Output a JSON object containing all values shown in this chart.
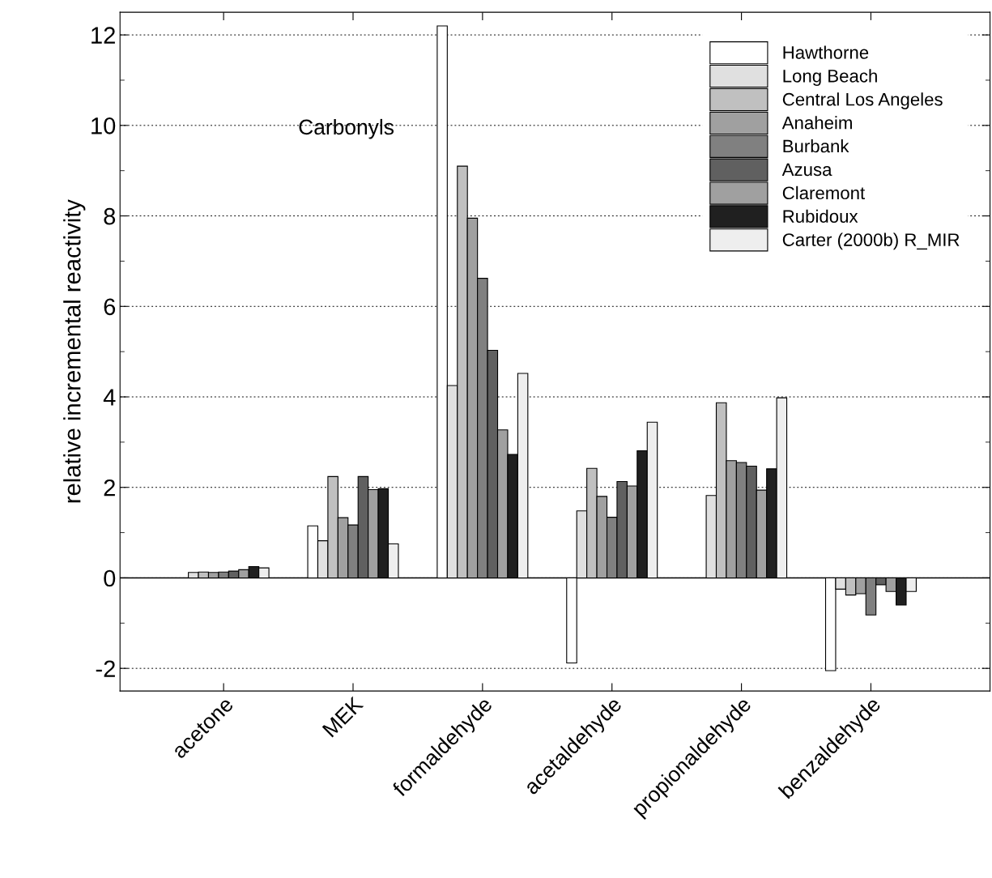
{
  "chart_data": {
    "type": "bar",
    "ylabel": "relative incremental reactivity",
    "annotations": [
      "Carbonyls"
    ],
    "categories": [
      "acetone",
      "MEK",
      "formaldehyde",
      "acetaldehyde",
      "propionaldehyde",
      "benzaldehyde"
    ],
    "series": [
      {
        "name": "Hawthorne",
        "color": "#ffffff",
        "values": [
          null,
          1.15,
          12.2,
          -1.88,
          null,
          -2.05
        ]
      },
      {
        "name": "Long Beach",
        "color": "#e0e0e0",
        "values": [
          0.12,
          0.82,
          4.25,
          1.48,
          1.82,
          -0.25
        ]
      },
      {
        "name": "Central Los Angeles",
        "color": "#c0c0c0",
        "values": [
          0.13,
          2.24,
          9.1,
          2.42,
          3.87,
          -0.38
        ]
      },
      {
        "name": "Anaheim",
        "color": "#a0a0a0",
        "values": [
          0.12,
          1.33,
          7.95,
          1.8,
          2.59,
          -0.35
        ]
      },
      {
        "name": "Burbank",
        "color": "#808080",
        "values": [
          0.13,
          1.17,
          6.62,
          1.34,
          2.55,
          -0.82
        ]
      },
      {
        "name": "Azusa",
        "color": "#606060",
        "values": [
          0.15,
          2.24,
          5.03,
          2.13,
          2.47,
          -0.15
        ]
      },
      {
        "name": "Claremont",
        "color": "#a0a0a0",
        "values": [
          0.18,
          1.95,
          3.27,
          2.03,
          1.94,
          -0.3
        ]
      },
      {
        "name": "Rubidoux",
        "color": "#202020",
        "values": [
          0.25,
          1.97,
          2.73,
          2.81,
          2.41,
          -0.6
        ]
      },
      {
        "name": "Carter (2000b) R_MIR",
        "color": "#eeeeee",
        "values": [
          0.22,
          0.75,
          4.52,
          3.44,
          3.98,
          -0.3
        ]
      }
    ],
    "ylim": [
      -2.5,
      12.5
    ],
    "yticks": [
      -2,
      0,
      2,
      4,
      6,
      8,
      10,
      12
    ],
    "ref_lines": [
      {
        "axis": "y",
        "value": 0
      }
    ],
    "grid": "y",
    "legend": "top right"
  }
}
